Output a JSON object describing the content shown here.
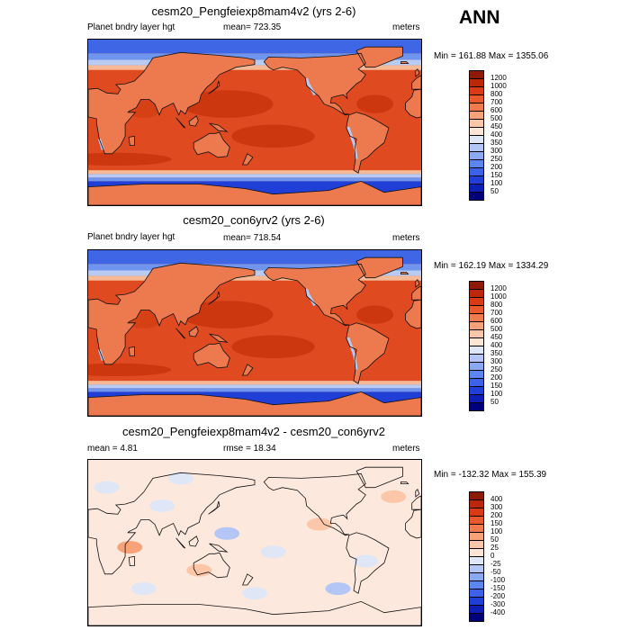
{
  "season": "ANN",
  "units": "meters",
  "panels": [
    {
      "title": "cesm20_Pengfeiexp8mam4v2 (yrs 2-6)",
      "left_label": "Planet bndry layer hgt",
      "center_label": "mean= 723.35",
      "right_label": "meters",
      "minmax": "Min = 161.88 Max = 1355.06"
    },
    {
      "title": "cesm20_con6yrv2 (yrs 2-6)",
      "left_label": "Planet bndry layer hgt",
      "center_label": "mean= 718.54",
      "right_label": "meters",
      "minmax": "Min = 162.19 Max = 1334.29"
    },
    {
      "title": "cesm20_Pengfeiexp8mam4v2 - cesm20_con6yrv2",
      "left_label": "mean =   4.81",
      "center_label": "rmse =  18.34",
      "right_label": "meters",
      "minmax": "Min = -132.32 Max = 155.39"
    }
  ],
  "chart_data": [
    {
      "type": "heatmap",
      "title": "cesm20_Pengfeiexp8mam4v2 (yrs 2-6)",
      "field": "Planet bndry layer hgt",
      "units": "meters",
      "mean": 723.35,
      "min": 161.88,
      "max": 1355.06,
      "projection": "cylindrical equidistant, centered on 180",
      "contour_levels": [
        50,
        100,
        150,
        200,
        250,
        300,
        350,
        400,
        450,
        500,
        600,
        700,
        800,
        1000,
        1200
      ],
      "colors": [
        "#00007a",
        "#0b1fb5",
        "#1f3fd6",
        "#3b62e8",
        "#5c85ef",
        "#8aa9f2",
        "#b3c6f5",
        "#dfe7f7",
        "#fde5d5",
        "#fbc7a8",
        "#f8a27a",
        "#f17b4f",
        "#e85a2e",
        "#d83a16",
        "#bb2708",
        "#8c1a04"
      ],
      "levels_label_lines": [
        "1200",
        "1000",
        "800",
        "700",
        "600",
        "500",
        "450",
        "400",
        "350",
        "300",
        "250",
        "200",
        "150",
        "100",
        "50"
      ]
    },
    {
      "type": "heatmap",
      "title": "cesm20_con6yrv2 (yrs 2-6)",
      "field": "Planet bndry layer hgt",
      "units": "meters",
      "mean": 718.54,
      "min": 162.19,
      "max": 1334.29,
      "projection": "cylindrical equidistant, centered on 180",
      "contour_levels": [
        50,
        100,
        150,
        200,
        250,
        300,
        350,
        400,
        450,
        500,
        600,
        700,
        800,
        1000,
        1200
      ],
      "colors": [
        "#00007a",
        "#0b1fb5",
        "#1f3fd6",
        "#3b62e8",
        "#5c85ef",
        "#8aa9f2",
        "#b3c6f5",
        "#dfe7f7",
        "#fde5d5",
        "#fbc7a8",
        "#f8a27a",
        "#f17b4f",
        "#e85a2e",
        "#d83a16",
        "#bb2708",
        "#8c1a04"
      ],
      "levels_label_lines": [
        "1200",
        "1000",
        "800",
        "700",
        "600",
        "500",
        "450",
        "400",
        "350",
        "300",
        "250",
        "200",
        "150",
        "100",
        "50"
      ]
    },
    {
      "type": "heatmap",
      "title": "cesm20_Pengfeiexp8mam4v2 - cesm20_con6yrv2",
      "field": "difference",
      "units": "meters",
      "mean": 4.81,
      "rmse": 18.34,
      "min": -132.32,
      "max": 155.39,
      "projection": "cylindrical equidistant, centered on 180",
      "contour_levels": [
        -400,
        -300,
        -200,
        -150,
        -100,
        -50,
        -25,
        0,
        25,
        50,
        100,
        150,
        200,
        300,
        400
      ],
      "colors": [
        "#00007a",
        "#0b1fb5",
        "#1f3fd6",
        "#3b62e8",
        "#5c85ef",
        "#8aa9f2",
        "#b3c6f5",
        "#dfe7f7",
        "#fde5d5",
        "#fbc7a8",
        "#f8a27a",
        "#f17b4f",
        "#e85a2e",
        "#d83a16",
        "#bb2708",
        "#8c1a04"
      ],
      "levels_label_lines": [
        "400",
        "300",
        "200",
        "150",
        "100",
        "50",
        "25",
        "0",
        "-25",
        "-50",
        "-100",
        "-150",
        "-200",
        "-300",
        "-400"
      ]
    }
  ]
}
